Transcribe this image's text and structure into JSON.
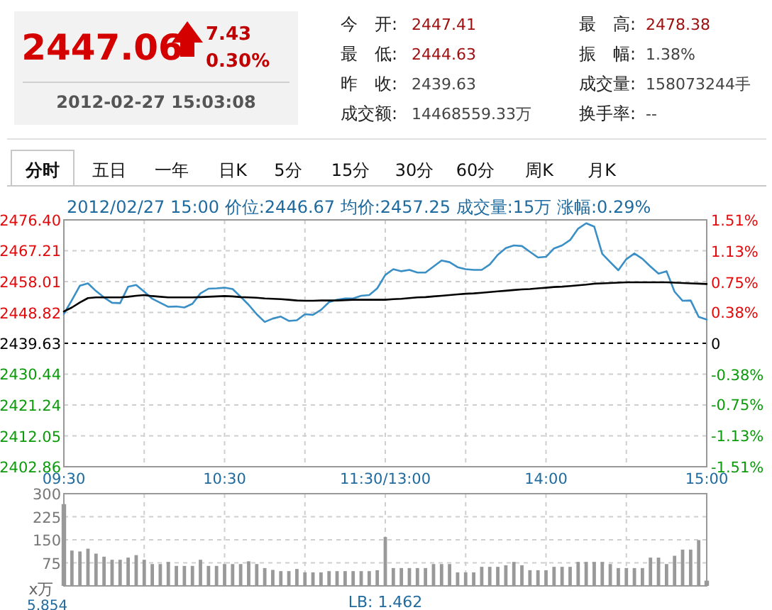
{
  "chart_data": [
    {
      "type": "other",
      "annotations": [
        "2447.06",
        "7.43",
        "0.30%",
        "2012-02-27 15:03:08",
        "今　开:",
        "2447.41",
        "最　低:",
        "2444.63",
        "昨　收:",
        "2439.63",
        "成交额:",
        "14468559.33万",
        "最　高:",
        "2478.38",
        "振　幅:",
        "1.38%",
        "成交量:",
        "158073244手",
        "换手率:",
        "--"
      ]
    },
    {
      "type": "other",
      "annotations": [
        "分时",
        "五日",
        "一年",
        "日K",
        "5分",
        "15分",
        "30分",
        "60分",
        "周K",
        "月K"
      ]
    },
    {
      "type": "line",
      "title": "2012/02/27 15:00  价位:2446.67  均价:2457.25  成交量:15万  涨幅:0.29%",
      "categories": [
        "09:30",
        null,
        null,
        null,
        null,
        null,
        null,
        null,
        null,
        null,
        null,
        null,
        null,
        null,
        null,
        null,
        null,
        null,
        null,
        null,
        "10:30",
        null,
        null,
        null,
        null,
        null,
        null,
        null,
        null,
        null,
        null,
        null,
        null,
        null,
        null,
        null,
        null,
        null,
        null,
        null,
        "11:30/13:00",
        null,
        null,
        null,
        null,
        null,
        null,
        null,
        null,
        null,
        null,
        null,
        null,
        null,
        null,
        null,
        null,
        null,
        null,
        null,
        "14:00",
        null,
        null,
        null,
        null,
        null,
        null,
        null,
        null,
        null,
        null,
        null,
        null,
        null,
        null,
        null,
        null,
        null,
        null,
        null,
        "15:00"
      ],
      "ylim": [
        2402.86,
        2476.4
      ],
      "yticks": [
        {
          "value": 2402.86,
          "label": "2402.86"
        },
        {
          "value": 2412.05,
          "label": "2412.05"
        },
        {
          "value": 2421.24,
          "label": "2421.24"
        },
        {
          "value": 2430.44,
          "label": "2430.44"
        },
        {
          "value": 2439.63,
          "label": "2439.63"
        },
        {
          "value": 2448.82,
          "label": "2448.82"
        },
        {
          "value": 2458.01,
          "label": "2458.01"
        },
        {
          "value": 2467.21,
          "label": "2467.21"
        },
        {
          "value": 2476.4,
          "label": "2476.40"
        }
      ],
      "y2lim": [
        -1.51,
        1.51
      ],
      "y2ticks": [
        {
          "value": -1.51,
          "label": "-1.51%"
        },
        {
          "value": -1.13,
          "label": "-1.13%"
        },
        {
          "value": -0.75,
          "label": "-0.75%"
        },
        {
          "value": -0.38,
          "label": "-0.38%"
        },
        {
          "value": 0,
          "label": "0"
        },
        {
          "value": 0.38,
          "label": "0.38%"
        },
        {
          "value": 0.75,
          "label": "0.75%"
        },
        {
          "value": 1.13,
          "label": "1.13%"
        },
        {
          "value": 1.51,
          "label": "1.51%"
        }
      ],
      "grid": true,
      "ref_lines": [
        {
          "axis": "y",
          "value": 2439.63,
          "color": "#000000",
          "line_style": "dashed"
        }
      ],
      "series": [
        {
          "color": "#3a8fc6",
          "values": [
            2448.4,
            2452.5,
            2456.8,
            2457.5,
            2455.2,
            2453.3,
            2451.7,
            2451.6,
            2456.5,
            2457.0,
            2455.0,
            2452.9,
            2451.7,
            2450.5,
            2450.6,
            2450.3,
            2451.4,
            2454.5,
            2455.9,
            2456.0,
            2456.2,
            2455.8,
            2453.5,
            2451.1,
            2448.3,
            2446.0,
            2447.0,
            2447.6,
            2446.3,
            2446.5,
            2448.3,
            2448.1,
            2449.6,
            2451.9,
            2452.6,
            2453.0,
            2453.0,
            2453.8,
            2454.0,
            2456.0,
            2460.0,
            2461.7,
            2461.1,
            2461.5,
            2460.7,
            2460.7,
            2462.5,
            2464.3,
            2463.8,
            2462.3,
            2461.7,
            2461.5,
            2461.5,
            2463.1,
            2466.0,
            2468.0,
            2468.8,
            2468.6,
            2466.9,
            2465.2,
            2465.4,
            2467.9,
            2468.8,
            2470.4,
            2473.8,
            2475.4,
            2474.4,
            2466.3,
            2463.8,
            2461.4,
            2464.7,
            2466.4,
            2464.8,
            2462.5,
            2460.4,
            2461.1,
            2455.0,
            2452.3,
            2452.4,
            2447.5,
            2446.7
          ]
        },
        {
          "color": "#000000",
          "values": [
            2449.1,
            2450.3,
            2451.8,
            2453.1,
            2453.3,
            2453.3,
            2453.3,
            2453.3,
            2453.5,
            2453.8,
            2454.0,
            2453.7,
            2453.5,
            2453.3,
            2453.3,
            2453.3,
            2453.3,
            2453.4,
            2453.5,
            2453.6,
            2453.7,
            2453.6,
            2453.4,
            2453.3,
            2453.2,
            2453.0,
            2452.9,
            2452.8,
            2452.6,
            2452.4,
            2452.3,
            2452.3,
            2452.4,
            2452.4,
            2452.4,
            2452.5,
            2452.6,
            2452.6,
            2452.6,
            2452.6,
            2452.6,
            2452.8,
            2452.9,
            2453.1,
            2453.3,
            2453.4,
            2453.6,
            2453.8,
            2454.0,
            2454.2,
            2454.4,
            2454.5,
            2454.7,
            2454.9,
            2455.1,
            2455.3,
            2455.5,
            2455.7,
            2455.8,
            2456.0,
            2456.2,
            2456.4,
            2456.5,
            2456.7,
            2456.9,
            2457.1,
            2457.4,
            2457.5,
            2457.6,
            2457.7,
            2457.8,
            2457.8,
            2457.8,
            2457.8,
            2457.8,
            2457.8,
            2457.7,
            2457.6,
            2457.5,
            2457.4,
            2457.3
          ]
        }
      ]
    },
    {
      "type": "bar",
      "ylabel": "x万",
      "color": "#999999",
      "categories": [
        null,
        null,
        null,
        null,
        null,
        null,
        null,
        null,
        null,
        null,
        null,
        null,
        null,
        null,
        null,
        null,
        null,
        null,
        null,
        null,
        null,
        null,
        null,
        null,
        null,
        null,
        null,
        null,
        null,
        null,
        null,
        null,
        null,
        null,
        null,
        null,
        null,
        null,
        null,
        null,
        null,
        null,
        null,
        null,
        null,
        null,
        null,
        null,
        null,
        null,
        null,
        null,
        null,
        null,
        null,
        null,
        null,
        null,
        null,
        null,
        null,
        null,
        null,
        null,
        null,
        null,
        null,
        null,
        null,
        null,
        null,
        null,
        null,
        null,
        null,
        null,
        null,
        null,
        null,
        null,
        null
      ],
      "ylim": [
        0,
        300
      ],
      "yticks": [
        75,
        150,
        225,
        300
      ],
      "grid": true,
      "annotations": [
        "LB: 1.462",
        "5.854"
      ],
      "values": [
        266,
        115,
        112,
        121,
        105,
        95,
        85,
        85,
        92,
        100,
        85,
        71,
        71,
        78,
        65,
        65,
        65,
        85,
        65,
        65,
        71,
        71,
        71,
        80,
        71,
        58,
        52,
        48,
        48,
        55,
        44,
        44,
        44,
        48,
        48,
        48,
        48,
        48,
        48,
        51,
        159,
        58,
        58,
        58,
        58,
        58,
        71,
        71,
        71,
        44,
        44,
        44,
        62,
        62,
        62,
        67,
        78,
        67,
        51,
        51,
        51,
        62,
        62,
        62,
        78,
        78,
        78,
        78,
        71,
        58,
        58,
        58,
        58,
        92,
        92,
        71,
        98,
        118,
        118,
        149,
        17
      ]
    }
  ]
}
